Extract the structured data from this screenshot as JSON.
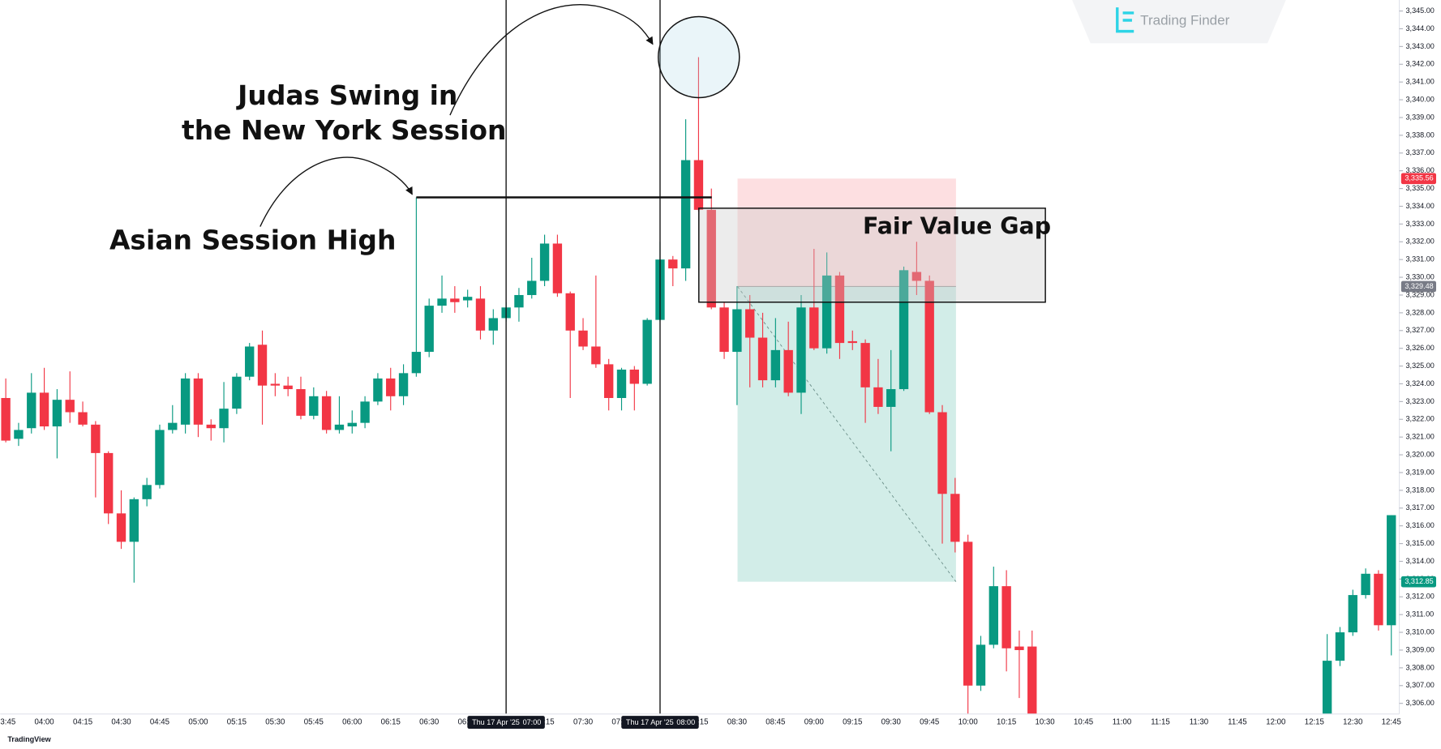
{
  "chart_data": {
    "type": "candlestick",
    "up_color": "#089981",
    "down_color": "#f23645",
    "categories": [
      "03:45",
      null,
      null,
      "04:00",
      null,
      null,
      "04:15",
      null,
      null,
      "04:30",
      null,
      null,
      "04:45",
      null,
      null,
      "05:00",
      null,
      null,
      "05:15",
      null,
      null,
      "05:30",
      null,
      null,
      "05:45",
      null,
      null,
      "06:00",
      null,
      null,
      "06:15",
      null,
      null,
      "06:30",
      null,
      null,
      "06:45",
      null,
      null,
      "07:00",
      null,
      null,
      "07:15",
      null,
      null,
      "07:30",
      null,
      null,
      "07:45",
      null,
      null,
      "08:00",
      null,
      null,
      "08:15",
      null,
      null,
      "08:30",
      null,
      null,
      "08:45",
      null,
      null,
      "09:00",
      null,
      null,
      "09:15",
      null,
      null,
      "09:30",
      null,
      null,
      "09:45",
      null,
      null,
      "10:00",
      null,
      null,
      "10:15",
      null,
      null,
      "10:30",
      null,
      null,
      "10:45",
      null,
      null,
      "11:00",
      null,
      null,
      "11:15",
      null,
      null,
      "11:30",
      null,
      null,
      "11:45",
      null,
      null,
      "12:00",
      null,
      null,
      "12:15",
      null,
      null,
      "12:30",
      null,
      null,
      "12:45"
    ],
    "open": [
      3323.2,
      3320.9,
      3321.5,
      3323.5,
      3321.6,
      3323.1,
      3322.4,
      3321.7,
      3320.1,
      3316.7,
      3315.1,
      3317.5,
      3318.3,
      3321.4,
      3321.7,
      3324.3,
      3321.7,
      3321.5,
      3322.6,
      3324.4,
      3326.2,
      3324.0,
      3323.9,
      3323.7,
      3322.2,
      3323.3,
      3321.4,
      3321.6,
      3321.8,
      3323.0,
      3324.3,
      3323.3,
      3324.6,
      3325.8,
      3328.4,
      3328.8,
      3328.7,
      3328.8,
      3327.0,
      3327.7,
      3328.3,
      3329.0,
      3329.8,
      3331.9,
      3329.1,
      3327.0,
      3326.1,
      3325.1,
      3323.2,
      3324.8,
      3324.0,
      3327.6,
      3331.0,
      3330.5,
      3336.6,
      3333.8,
      3328.3,
      3325.8,
      3328.2,
      3326.6,
      3324.2,
      3325.9,
      3323.5,
      3328.3,
      3326.0,
      3330.1,
      3326.4,
      3326.3,
      3323.8,
      3322.7,
      3323.7,
      3330.3,
      3329.8,
      3322.4,
      3317.8,
      3315.1,
      3307.0,
      3309.3,
      3312.6,
      3309.2,
      3309.2,
      null,
      null,
      null,
      null,
      null,
      null,
      null,
      null,
      null,
      null,
      null,
      null,
      null,
      null,
      null,
      null,
      null,
      null,
      null,
      null,
      null,
      null,
      3305.4,
      3308.4,
      3310.0,
      3312.1,
      3313.3,
      3310.4
    ],
    "high": [
      3324.3,
      3321.8,
      3324.6,
      3324.9,
      3323.7,
      3324.7,
      3323.0,
      3321.9,
      3320.2,
      3318.0,
      3317.6,
      3318.7,
      3321.7,
      3322.8,
      3324.6,
      3324.6,
      3322.0,
      3324.1,
      3324.6,
      3326.3,
      3327.0,
      3324.6,
      3324.4,
      3324.4,
      3323.8,
      3323.6,
      3323.3,
      3322.5,
      3323.3,
      3324.6,
      3324.9,
      3325.1,
      3334.5,
      3328.8,
      3330.1,
      3329.5,
      3329.3,
      3329.5,
      3328.2,
      3328.6,
      3329.4,
      3331.1,
      3332.4,
      3332.4,
      3329.2,
      3327.7,
      3330.1,
      3325.4,
      3324.9,
      3325.0,
      3327.7,
      3332.0,
      3331.2,
      3338.9,
      3342.4,
      3335.0,
      3328.6,
      3329.5,
      3329.0,
      3328.0,
      3327.7,
      3327.5,
      3329.0,
      3331.6,
      3331.4,
      3330.3,
      3327.0,
      3326.5,
      3325.4,
      3325.9,
      3330.6,
      3332.0,
      3330.1,
      3322.8,
      3318.7,
      3315.5,
      3309.8,
      3313.7,
      3313.5,
      3310.1,
      3310.1,
      null,
      null,
      null,
      null,
      null,
      null,
      null,
      null,
      null,
      null,
      null,
      null,
      null,
      null,
      null,
      null,
      null,
      null,
      null,
      null,
      null,
      null,
      3309.9,
      3310.3,
      3312.4,
      3313.6,
      3313.5,
      3316.6
    ],
    "low": [
      3320.7,
      3320.5,
      3321.2,
      3321.4,
      3319.8,
      3321.8,
      3321.6,
      3317.6,
      3316.1,
      3314.7,
      3312.8,
      3317.1,
      3318.1,
      3321.2,
      3321.2,
      3321.0,
      3320.8,
      3320.7,
      3322.3,
      3324.2,
      3321.7,
      3323.3,
      3323.3,
      3322.0,
      3322.0,
      3321.2,
      3321.2,
      3321.2,
      3321.5,
      3322.8,
      3322.5,
      3322.8,
      3324.4,
      3325.5,
      3328.0,
      3328.0,
      3328.3,
      3326.5,
      3326.2,
      3327.5,
      3327.5,
      3328.8,
      3329.5,
      3328.9,
      3323.2,
      3325.9,
      3324.9,
      3322.5,
      3322.5,
      3322.5,
      3323.9,
      3327.5,
      3329.5,
      3329.8,
      3333.7,
      3328.2,
      3325.4,
      3322.8,
      3323.8,
      3323.8,
      3323.8,
      3323.3,
      3322.3,
      3325.9,
      3325.7,
      3325.4,
      3325.9,
      3321.8,
      3322.3,
      3320.2,
      3323.6,
      3329.0,
      3322.3,
      3315.0,
      3314.5,
      3305.4,
      3306.7,
      3309.1,
      3307.8,
      3306.3,
      3305.4,
      null,
      null,
      null,
      null,
      null,
      null,
      null,
      null,
      null,
      null,
      null,
      null,
      null,
      null,
      null,
      null,
      null,
      null,
      null,
      null,
      null,
      null,
      3305.4,
      3308.1,
      3309.8,
      3311.9,
      3310.1,
      3308.7
    ],
    "close": [
      3320.8,
      3321.4,
      3323.5,
      3321.6,
      3323.1,
      3322.4,
      3321.7,
      3320.1,
      3316.7,
      3315.1,
      3317.5,
      3318.3,
      3321.4,
      3321.8,
      3324.3,
      3321.7,
      3321.5,
      3322.6,
      3324.4,
      3326.1,
      3323.9,
      3323.9,
      3323.7,
      3322.2,
      3323.3,
      3321.4,
      3321.7,
      3321.8,
      3323.0,
      3324.3,
      3323.3,
      3324.6,
      3325.8,
      3328.4,
      3328.8,
      3328.6,
      3328.9,
      3327.0,
      3327.7,
      3328.3,
      3329.0,
      3329.8,
      3331.9,
      3329.1,
      3327.0,
      3326.1,
      3325.1,
      3323.2,
      3324.8,
      3324.0,
      3327.6,
      3331.0,
      3330.5,
      3336.6,
      3333.8,
      3328.3,
      3325.8,
      3328.2,
      3326.6,
      3324.2,
      3325.9,
      3323.5,
      3328.3,
      3326.0,
      3330.1,
      3326.3,
      3326.3,
      3323.8,
      3322.7,
      3323.7,
      3330.4,
      3329.8,
      3322.4,
      3317.8,
      3315.1,
      3307.0,
      3309.3,
      3312.6,
      3309.1,
      3309.0,
      3305.4,
      null,
      null,
      null,
      null,
      null,
      null,
      null,
      null,
      null,
      null,
      null,
      null,
      null,
      null,
      null,
      null,
      null,
      null,
      null,
      null,
      null,
      null,
      3308.4,
      3310.0,
      3312.1,
      3313.3,
      3310.4,
      3316.6
    ],
    "ylim": [
      3305.4,
      3345.62
    ],
    "yticks": [
      {
        "value": 3306,
        "label": "3,306.00"
      },
      {
        "value": 3307,
        "label": "3,307.00"
      },
      {
        "value": 3308,
        "label": "3,308.00"
      },
      {
        "value": 3309,
        "label": "3,309.00"
      },
      {
        "value": 3310,
        "label": "3,310.00"
      },
      {
        "value": 3311,
        "label": "3,311.00"
      },
      {
        "value": 3312,
        "label": "3,312.00"
      },
      {
        "value": 3313,
        "label": "3,313.00"
      },
      {
        "value": 3314,
        "label": "3,314.00"
      },
      {
        "value": 3315,
        "label": "3,315.00"
      },
      {
        "value": 3316,
        "label": "3,316.00"
      },
      {
        "value": 3317,
        "label": "3,317.00"
      },
      {
        "value": 3318,
        "label": "3,318.00"
      },
      {
        "value": 3319,
        "label": "3,319.00"
      },
      {
        "value": 3320,
        "label": "3,320.00"
      },
      {
        "value": 3321,
        "label": "3,321.00"
      },
      {
        "value": 3322,
        "label": "3,322.00"
      },
      {
        "value": 3323,
        "label": "3,323.00"
      },
      {
        "value": 3324,
        "label": "3,324.00"
      },
      {
        "value": 3325,
        "label": "3,325.00"
      },
      {
        "value": 3326,
        "label": "3,326.00"
      },
      {
        "value": 3327,
        "label": "3,327.00"
      },
      {
        "value": 3328,
        "label": "3,328.00"
      },
      {
        "value": 3329,
        "label": "3,329.00"
      },
      {
        "value": 3330,
        "label": "3,330.00"
      },
      {
        "value": 3331,
        "label": "3,331.00"
      },
      {
        "value": 3332,
        "label": "3,332.00"
      },
      {
        "value": 3333,
        "label": "3,333.00"
      },
      {
        "value": 3334,
        "label": "3,334.00"
      },
      {
        "value": 3335,
        "label": "3,335.00"
      },
      {
        "value": 3336,
        "label": "3,336.00"
      },
      {
        "value": 3337,
        "label": "3,337.00"
      },
      {
        "value": 3338,
        "label": "3,338.00"
      },
      {
        "value": 3339,
        "label": "3,339.00"
      },
      {
        "value": 3340,
        "label": "3,340.00"
      },
      {
        "value": 3341,
        "label": "3,341.00"
      },
      {
        "value": 3342,
        "label": "3,342.00"
      },
      {
        "value": 3343,
        "label": "3,343.00"
      },
      {
        "value": 3344,
        "label": "3,344.00"
      },
      {
        "value": 3345,
        "label": "3,345.00"
      }
    ],
    "price_tags": [
      {
        "value": 3335.56,
        "label": "3,335.56",
        "color": "#f23645"
      },
      {
        "value": 3329.48,
        "label": "3,329.48",
        "color": "#787b86"
      },
      {
        "value": 3312.85,
        "label": "3,312.85",
        "color": "#089981"
      }
    ],
    "time_markers": [
      {
        "date": "Thu 17 Apr '25",
        "time": "07:00"
      },
      {
        "date": "Thu 17 Apr '25",
        "time": "08:00"
      }
    ],
    "annotations": {
      "judas": [
        "Judas Swing in",
        "the New York Session"
      ],
      "asian_high": "Asian Session High",
      "fvg": "Fair Value Gap"
    },
    "logo": "Trading Finder",
    "footer": "TradingView"
  }
}
